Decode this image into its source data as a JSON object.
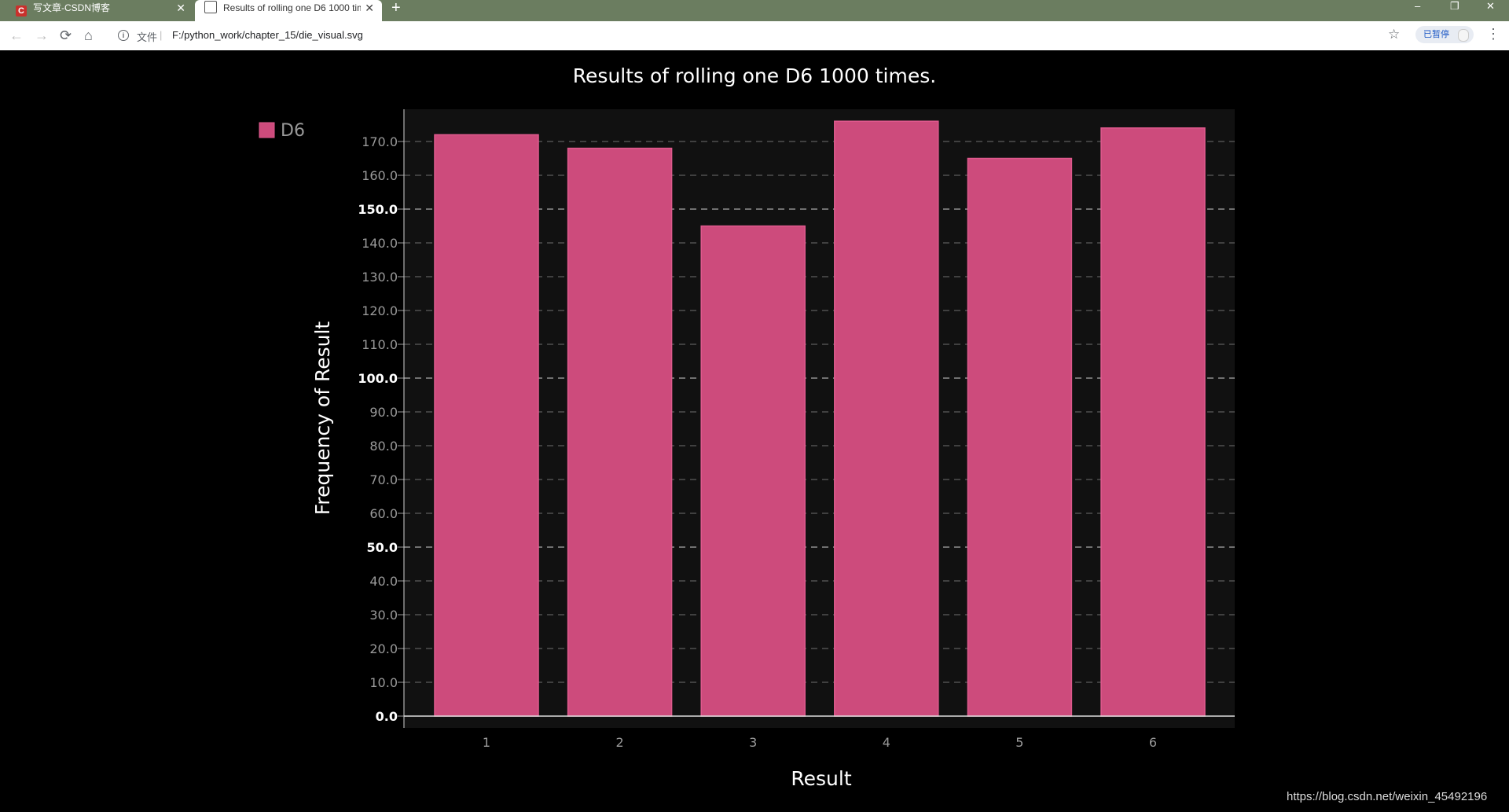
{
  "browser": {
    "tabs": [
      {
        "title": "写文章-CSDN博客",
        "icon": "csdn-icon",
        "active": false
      },
      {
        "title": "Results of rolling one D6 1000 times.",
        "icon": "globe-icon",
        "active": true
      }
    ],
    "new_tab_symbol": "+",
    "window_controls": {
      "minimize": "–",
      "restore": "❐",
      "close": "✕"
    },
    "nav": {
      "back": "←",
      "forward": "→",
      "reload": "⟳",
      "home": "⌂"
    },
    "address": {
      "scheme_label": "文件",
      "separator": "|",
      "url": "F:/python_work/chapter_15/die_visual.svg"
    },
    "bookmark_symbol": "☆",
    "paused_label": "已暂停",
    "menu_symbol": "⋮"
  },
  "chart_data": {
    "type": "bar",
    "title": "Results of rolling one D6 1000 times.",
    "xlabel": "Result",
    "ylabel": "Frequency of Result",
    "categories": [
      "1",
      "2",
      "3",
      "4",
      "5",
      "6"
    ],
    "series": [
      {
        "name": "D6",
        "values": [
          172,
          168,
          145,
          176,
          165,
          174
        ]
      }
    ],
    "ylim": [
      0,
      176
    ],
    "yticks": [
      0,
      10,
      20,
      30,
      40,
      50,
      60,
      70,
      80,
      90,
      100,
      110,
      120,
      130,
      140,
      150,
      160,
      170
    ],
    "major_yticks": [
      0,
      50,
      100,
      150
    ],
    "grid": true,
    "legend_position": "top-left",
    "colors": {
      "bar": "#cd4b7c",
      "bar_edge": "#e05a8e",
      "plot_bg": "#111111",
      "background": "#000000"
    }
  },
  "watermark": "https://blog.csdn.net/weixin_45492196"
}
